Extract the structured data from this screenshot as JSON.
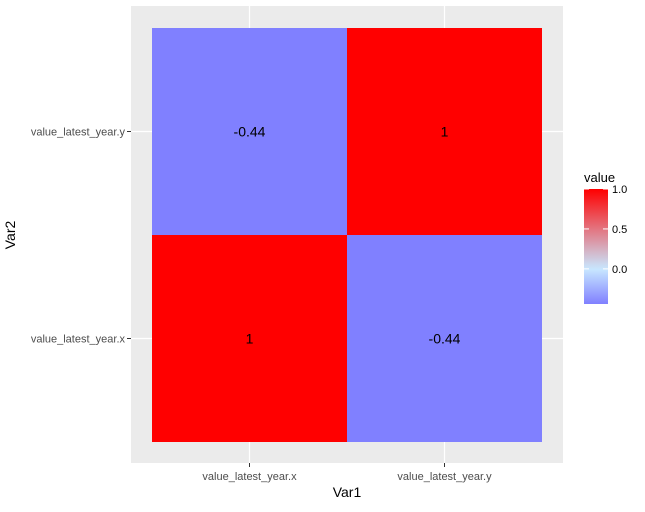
{
  "chart_data": {
    "type": "heatmap",
    "title": "",
    "xlabel": "Var1",
    "ylabel": "Var2",
    "x_categories": [
      "value_latest_year.x",
      "value_latest_year.y"
    ],
    "y_categories": [
      "value_latest_year.x",
      "value_latest_year.y"
    ],
    "cells": [
      {
        "x": "value_latest_year.x",
        "y": "value_latest_year.x",
        "value": 1,
        "label": "1"
      },
      {
        "x": "value_latest_year.y",
        "y": "value_latest_year.x",
        "value": -0.44,
        "label": "-0.44"
      },
      {
        "x": "value_latest_year.x",
        "y": "value_latest_year.y",
        "value": -0.44,
        "label": "-0.44"
      },
      {
        "x": "value_latest_year.y",
        "y": "value_latest_year.y",
        "value": 1,
        "label": "1"
      }
    ],
    "legend": {
      "title": "value",
      "placement": "right",
      "range": [
        -0.44,
        1
      ],
      "ticks": [
        {
          "value": 1.0,
          "label": "1.0"
        },
        {
          "value": 0.5,
          "label": "0.5"
        },
        {
          "value": 0.0,
          "label": "0.0"
        }
      ]
    },
    "color_scale": {
      "low": "#8080ff",
      "mid": "#c8e8ff",
      "high": "#ff0000",
      "midpoint": 0
    },
    "grid": true,
    "panel_background": "#ebebeb"
  }
}
